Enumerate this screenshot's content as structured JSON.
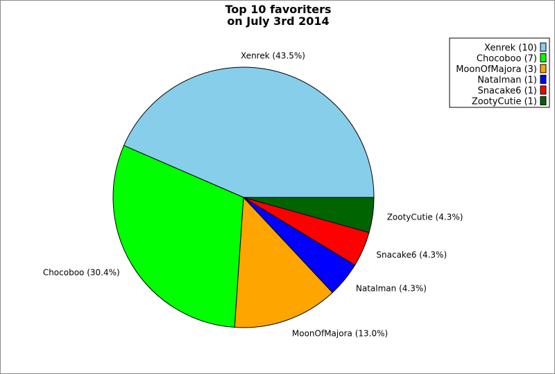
{
  "chart_data": {
    "type": "pie",
    "title": [
      "Top 10 favoriters",
      "on July 3rd 2014"
    ],
    "slices": [
      {
        "name": "Xenrek",
        "count": 10,
        "percent": 43.5,
        "color": "#87ceeb",
        "label": "Xenrek (43.5%)",
        "legend": "Xenrek (10)"
      },
      {
        "name": "Chocoboo",
        "count": 7,
        "percent": 30.4,
        "color": "#00ff00",
        "label": "Chocoboo (30.4%)",
        "legend": "Chocoboo (7)"
      },
      {
        "name": "MoonOfMajora",
        "count": 3,
        "percent": 13.0,
        "color": "#ffa500",
        "label": "MoonOfMajora (13.0%)",
        "legend": "MoonOfMajora (3)"
      },
      {
        "name": "Natalman",
        "count": 1,
        "percent": 4.3,
        "color": "#0000ff",
        "label": "Natalman (4.3%)",
        "legend": "Natalman (1)"
      },
      {
        "name": "Snacake6",
        "count": 1,
        "percent": 4.3,
        "color": "#ff0000",
        "label": "Snacake6 (4.3%)",
        "legend": "Snacake6 (1)"
      },
      {
        "name": "ZootyCutie",
        "count": 1,
        "percent": 4.3,
        "color": "#006400",
        "label": "ZootyCutie (4.3%)",
        "legend": "ZootyCutie (1)"
      }
    ],
    "legend_position": "top-right"
  }
}
